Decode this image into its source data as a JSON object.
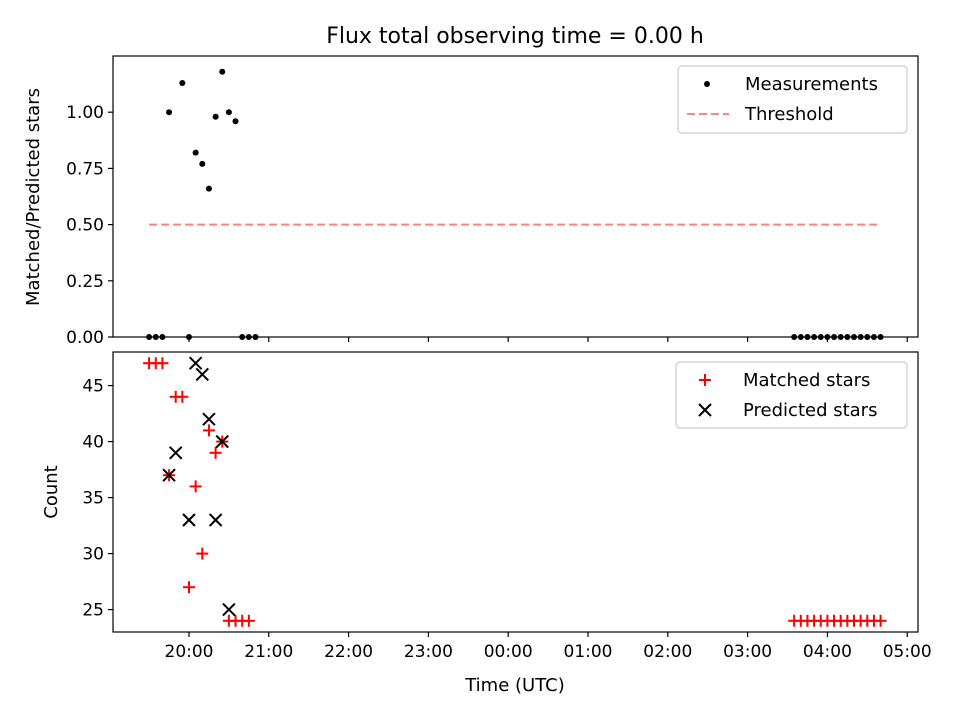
{
  "title": "Flux total observing time = 0.00 h",
  "colors": {
    "measurement": "#000000",
    "threshold": "#ff8080",
    "matched": "#ff0000",
    "predicted": "#000000"
  },
  "chart_data": [
    {
      "type": "scatter",
      "ylabel": "Matched/Predicted stars",
      "ylim": [
        0,
        1.25
      ],
      "yticks": [
        "0.00",
        "0.25",
        "0.50",
        "0.75",
        "1.00"
      ],
      "yticks_values": [
        0,
        0.25,
        0.5,
        0.75,
        1.0
      ],
      "grid": false,
      "legend_position": "top-right",
      "series": [
        {
          "name": "Measurements",
          "marker": "dot",
          "x": [
            "19:30",
            "19:35",
            "19:40",
            "19:45",
            "19:55",
            "20:00",
            "20:05",
            "20:10",
            "20:15",
            "20:20",
            "20:25",
            "20:30",
            "20:35",
            "20:40",
            "20:45",
            "20:50",
            "03:35",
            "03:40",
            "03:45",
            "03:50",
            "03:55",
            "04:00",
            "04:05",
            "04:10",
            "04:15",
            "04:20",
            "04:25",
            "04:30",
            "04:35",
            "04:40"
          ],
          "y": [
            0,
            0,
            0,
            1.0,
            1.13,
            0,
            0.82,
            0.77,
            0.66,
            0.98,
            1.18,
            1.0,
            0.96,
            0,
            0,
            0,
            0,
            0,
            0,
            0,
            0,
            0,
            0,
            0,
            0,
            0,
            0,
            0,
            0,
            0
          ]
        },
        {
          "name": "Threshold",
          "style": "dashed",
          "x": [
            "19:30",
            "04:40"
          ],
          "y": [
            0.5,
            0.5
          ]
        }
      ]
    },
    {
      "type": "scatter",
      "ylabel": "Count",
      "xlabel": "Time (UTC)",
      "ylim": [
        23,
        48
      ],
      "yticks": [
        "25",
        "30",
        "35",
        "40",
        "45"
      ],
      "yticks_values": [
        25,
        30,
        35,
        40,
        45
      ],
      "xticks": [
        "20:00",
        "21:00",
        "22:00",
        "23:00",
        "00:00",
        "01:00",
        "02:00",
        "03:00",
        "04:00",
        "05:00"
      ],
      "grid": false,
      "legend_position": "top-right",
      "series": [
        {
          "name": "Matched stars",
          "marker": "plus",
          "x": [
            "19:30",
            "19:35",
            "19:40",
            "19:45",
            "19:50",
            "19:55",
            "20:00",
            "20:05",
            "20:10",
            "20:15",
            "20:20",
            "20:25",
            "20:30",
            "20:35",
            "20:40",
            "20:45",
            "03:35",
            "03:40",
            "03:45",
            "03:50",
            "03:55",
            "04:00",
            "04:05",
            "04:10",
            "04:15",
            "04:20",
            "04:25",
            "04:30",
            "04:35",
            "04:40"
          ],
          "y": [
            47,
            47,
            47,
            37,
            44,
            44,
            27,
            36,
            30,
            41,
            39,
            40,
            24,
            24,
            24,
            24,
            24,
            24,
            24,
            24,
            24,
            24,
            24,
            24,
            24,
            24,
            24,
            24,
            24,
            24
          ]
        },
        {
          "name": "Predicted stars",
          "marker": "x",
          "x": [
            "19:45",
            "19:50",
            "20:00",
            "20:05",
            "20:10",
            "20:15",
            "20:20",
            "20:25",
            "20:30"
          ],
          "y": [
            37,
            39,
            33,
            47,
            46,
            42,
            33,
            40,
            25
          ]
        }
      ]
    }
  ]
}
